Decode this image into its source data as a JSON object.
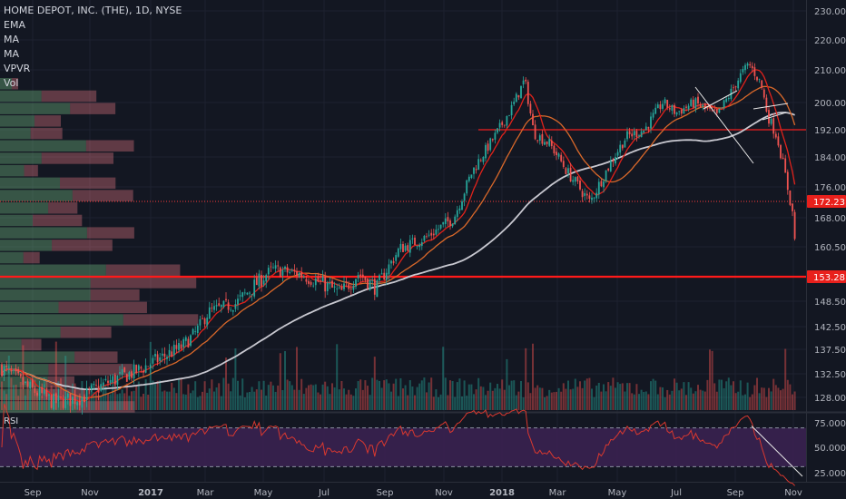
{
  "legend": {
    "symbol": "HOME DEPOT, INC. (THE), 1D, NYSE",
    "items": [
      "EMA",
      "MA",
      "MA",
      "VPVR",
      "Vol"
    ]
  },
  "rsi_label": "RSI",
  "colors": {
    "background": "#131722",
    "up": "#26a69a",
    "down": "#ef5350",
    "ema": "#e0221b",
    "ma_fast": "#d9682a",
    "ma_slow": "#c8c8d0",
    "rsi_line": "#d9382f",
    "rsi_band": "#3a2150",
    "resistance": "#cc1f1f",
    "support": "#ff1a1a",
    "trendline": "#e8e8e8"
  },
  "chart_data": [
    {
      "type": "candlestick",
      "title": "HOME DEPOT, INC. (THE), 1D, NYSE",
      "x_ticks": [
        "Sep",
        "Nov",
        "2017",
        "Mar",
        "May",
        "Jul",
        "Sep",
        "Nov",
        "2018",
        "Mar",
        "May",
        "Jul",
        "Sep",
        "Nov"
      ],
      "y_ticks": [
        "230.00",
        "220.00",
        "210.00",
        "200.00",
        "192.00",
        "184.00",
        "176.00",
        "168.00",
        "160.50",
        "153.28",
        "148.50",
        "142.50",
        "137.50",
        "132.50",
        "128.00"
      ],
      "price_labels": [
        {
          "value": 172.23,
          "label": "172.23"
        },
        {
          "value": 153.28,
          "label": "153.28"
        }
      ],
      "horizontal_lines": [
        {
          "value": 192.0,
          "name": "resistance"
        },
        {
          "value": 153.28,
          "name": "support"
        }
      ],
      "close_anchors": [
        {
          "x": 0,
          "y": 134
        },
        {
          "x": 30,
          "y": 130
        },
        {
          "x": 60,
          "y": 127
        },
        {
          "x": 90,
          "y": 128
        },
        {
          "x": 120,
          "y": 131
        },
        {
          "x": 150,
          "y": 133
        },
        {
          "x": 180,
          "y": 136
        },
        {
          "x": 200,
          "y": 138
        },
        {
          "x": 215,
          "y": 141
        },
        {
          "x": 230,
          "y": 146
        },
        {
          "x": 260,
          "y": 148
        },
        {
          "x": 300,
          "y": 155
        },
        {
          "x": 330,
          "y": 154
        },
        {
          "x": 355,
          "y": 152
        },
        {
          "x": 375,
          "y": 150
        },
        {
          "x": 395,
          "y": 154
        },
        {
          "x": 415,
          "y": 151
        },
        {
          "x": 440,
          "y": 160
        },
        {
          "x": 470,
          "y": 163
        },
        {
          "x": 500,
          "y": 168
        },
        {
          "x": 520,
          "y": 180
        },
        {
          "x": 545,
          "y": 190
        },
        {
          "x": 565,
          "y": 199
        },
        {
          "x": 578,
          "y": 207
        },
        {
          "x": 588,
          "y": 191
        },
        {
          "x": 605,
          "y": 188
        },
        {
          "x": 625,
          "y": 180
        },
        {
          "x": 650,
          "y": 172
        },
        {
          "x": 665,
          "y": 179
        },
        {
          "x": 690,
          "y": 190
        },
        {
          "x": 710,
          "y": 192
        },
        {
          "x": 730,
          "y": 200
        },
        {
          "x": 745,
          "y": 197
        },
        {
          "x": 765,
          "y": 200
        },
        {
          "x": 790,
          "y": 196
        },
        {
          "x": 805,
          "y": 203
        },
        {
          "x": 815,
          "y": 208
        },
        {
          "x": 825,
          "y": 212
        },
        {
          "x": 838,
          "y": 206
        },
        {
          "x": 846,
          "y": 196
        },
        {
          "x": 856,
          "y": 190
        },
        {
          "x": 866,
          "y": 178
        },
        {
          "x": 874,
          "y": 168
        },
        {
          "x": 877,
          "y": 158
        }
      ],
      "rsi": {
        "y_ticks": [
          "75.0000",
          "50.0000",
          "25.0000"
        ],
        "levels": [
          70,
          30
        ]
      }
    }
  ]
}
